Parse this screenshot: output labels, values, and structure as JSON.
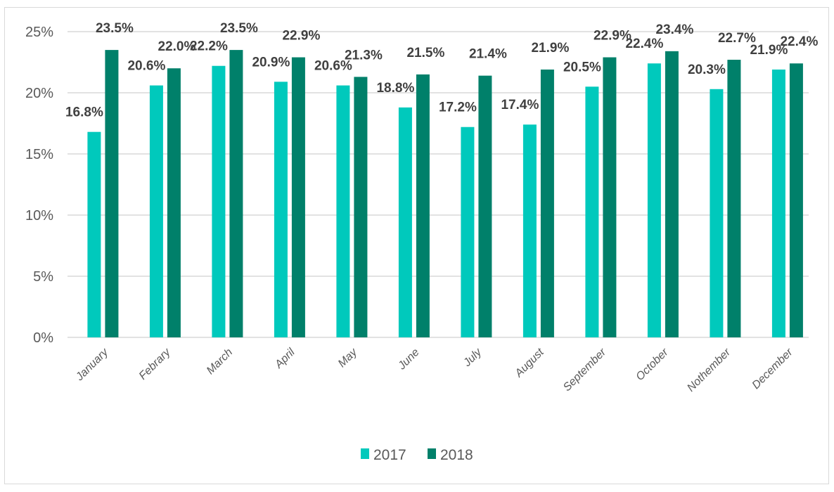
{
  "chart_data": {
    "type": "bar",
    "categories": [
      "January",
      "Febrary",
      "March",
      "April",
      "May",
      "June",
      "July",
      "August",
      "September",
      "October",
      "Nothember",
      "December"
    ],
    "series": [
      {
        "name": "2017",
        "color": "#00c9bc",
        "values": [
          16.8,
          20.6,
          22.2,
          20.9,
          20.6,
          18.8,
          17.2,
          17.4,
          20.5,
          22.4,
          20.3,
          21.9
        ]
      },
      {
        "name": "2018",
        "color": "#00806a",
        "values": [
          23.5,
          22.0,
          23.5,
          22.9,
          21.3,
          21.5,
          21.4,
          21.9,
          22.9,
          23.4,
          22.7,
          22.4
        ]
      }
    ],
    "ylim": [
      0,
      25
    ],
    "yticks": [
      "0%",
      "5%",
      "10%",
      "15%",
      "20%",
      "25%"
    ],
    "value_format": "percent, one decimal",
    "grid": true,
    "legend": "bottom"
  }
}
